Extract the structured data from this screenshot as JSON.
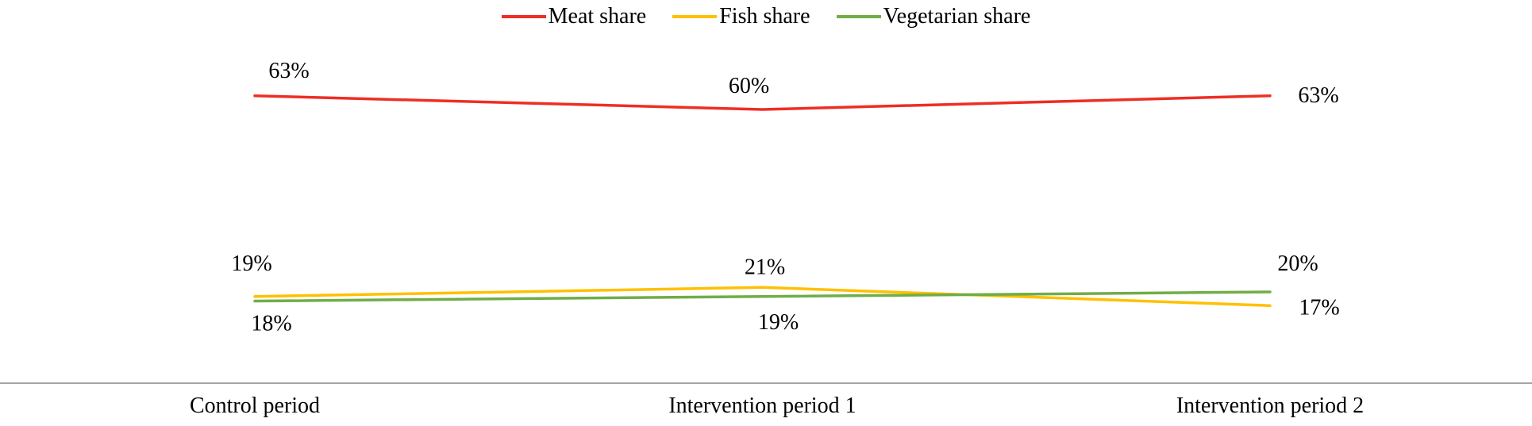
{
  "chart_data": {
    "type": "line",
    "categories": [
      "Control period",
      "Intervention period 1",
      "Intervention period 2"
    ],
    "series": [
      {
        "name": "Meat share",
        "color": "#ee2e24",
        "values": [
          63,
          60,
          63
        ],
        "labels": [
          "63%",
          "60%",
          "63%"
        ]
      },
      {
        "name": "Fish share",
        "color": "#ffc000",
        "values": [
          19,
          21,
          17
        ],
        "labels": [
          "19%",
          "21%",
          "17%"
        ]
      },
      {
        "name": "Vegetarian share",
        "color": "#70ad47",
        "values": [
          18,
          19,
          20
        ],
        "labels": [
          "18%",
          "19%",
          "20%"
        ]
      }
    ],
    "title": "",
    "xlabel": "",
    "ylabel": "",
    "ylim": [
      0,
      84
    ],
    "grid": false,
    "legend_position": "top",
    "axis_color": "#a6a6a6",
    "text_color": "#000000",
    "background_color": "#ffffff"
  }
}
